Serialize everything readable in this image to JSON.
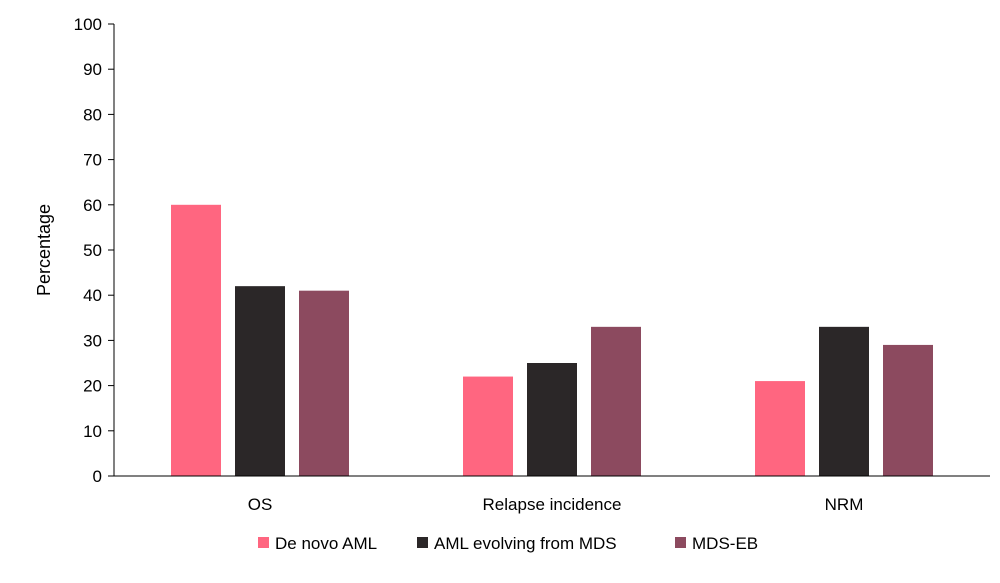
{
  "chart_data": {
    "type": "bar",
    "title": "",
    "xlabel": "",
    "ylabel": "Percentage",
    "ylim": [
      0,
      100
    ],
    "yticks": [
      "0",
      "10",
      "20",
      "30",
      "40",
      "50",
      "60",
      "70",
      "80",
      "90",
      "100"
    ],
    "categories": [
      "OS",
      "Relapse incidence",
      "NRM"
    ],
    "series": [
      {
        "name": "De novo AML",
        "color": "#ff6680",
        "values": [
          60,
          22,
          21
        ]
      },
      {
        "name": "AML evolving from MDS",
        "color": "#2b2728",
        "values": [
          42,
          25,
          33
        ]
      },
      {
        "name": "MDS-EB",
        "color": "#8c4a5f",
        "values": [
          41,
          33,
          29
        ]
      }
    ],
    "grid": false,
    "legend_position": "bottom"
  }
}
